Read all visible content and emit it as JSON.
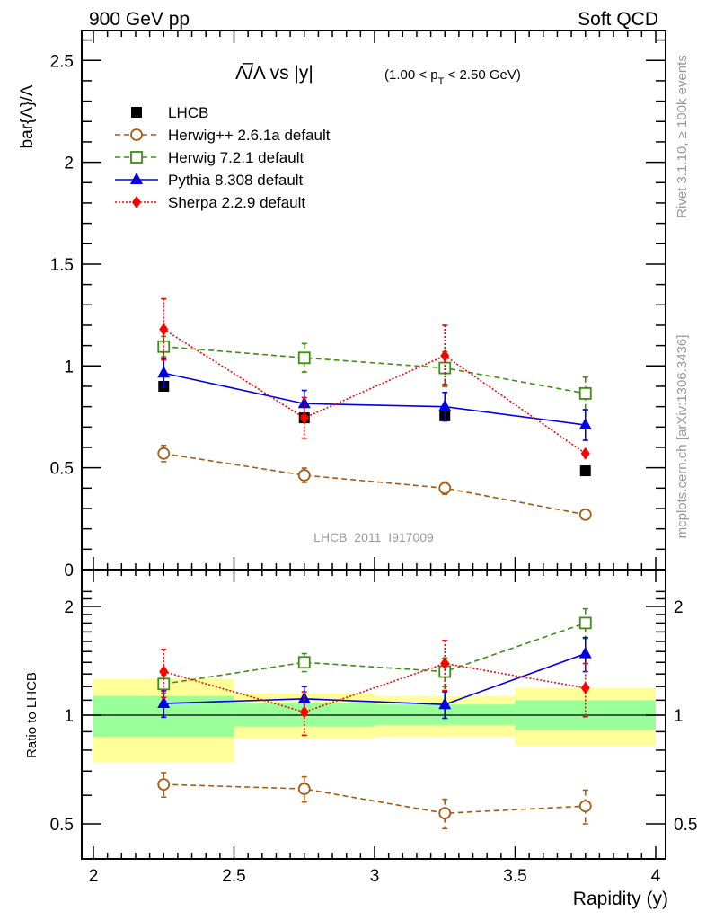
{
  "header": {
    "left": "900 GeV pp",
    "right": "Soft QCD"
  },
  "side_text": {
    "rivet": "Rivet 3.1.10, ≥ 100k events",
    "mcplots": "mcplots.cern.ch [arXiv:1306.3436]"
  },
  "chart_data": [
    {
      "type": "line",
      "panel": "main",
      "title_main": "Λ̅/Λ vs |y|",
      "title_sub": "(1.00 < p_T < 2.50 GeV)",
      "title_sub_parts": [
        "(1.00 < p",
        "T",
        " < 2.50 GeV)"
      ],
      "ylabel": "bar{Λ}/Λ",
      "xlabel": "",
      "analysis_tag": "LHCB_2011_I917009",
      "xlim": [
        1.96,
        4.04
      ],
      "ylim": [
        0,
        2.65
      ],
      "yticks": [
        0,
        0.5,
        1,
        1.5,
        2,
        2.5
      ],
      "ytick_labels": [
        "0",
        "0.5",
        "1",
        "1.5",
        "2",
        "2.5"
      ],
      "x": [
        2.25,
        2.75,
        3.25,
        3.75
      ],
      "legend_position": "top-left",
      "series": [
        {
          "name": "LHCB",
          "style": "data",
          "color": "#000000",
          "marker": "square-filled",
          "values": [
            0.9,
            0.745,
            0.755,
            0.485
          ],
          "errors": [
            0.0,
            0.0,
            0.0,
            0.0
          ]
        },
        {
          "name": "Herwig++ 2.6.1a default",
          "style": "dashed",
          "color": "#a85a10",
          "marker": "circle-open",
          "values": [
            0.57,
            0.463,
            0.4,
            0.27
          ],
          "errors": [
            0.04,
            0.035,
            0.03,
            0.02
          ]
        },
        {
          "name": "Herwig 7.2.1 default",
          "style": "dashed",
          "color": "#3e8e12",
          "marker": "square-open",
          "values": [
            1.095,
            1.04,
            0.99,
            0.865
          ],
          "errors": [
            0.05,
            0.07,
            0.08,
            0.08
          ]
        },
        {
          "name": "Pythia 8.308 default",
          "style": "solid",
          "color": "#0000e0",
          "marker": "triangle-filled",
          "values": [
            0.965,
            0.815,
            0.8,
            0.71
          ],
          "errors": [
            0.07,
            0.065,
            0.07,
            0.075
          ]
        },
        {
          "name": "Sherpa 2.2.9 default",
          "style": "dotted",
          "color": "#ff0000",
          "marker": "diamond-filled",
          "values": [
            1.18,
            0.745,
            1.05,
            0.57
          ],
          "errors": [
            0.15,
            0.1,
            0.15,
            0.0
          ]
        }
      ]
    },
    {
      "type": "line",
      "panel": "ratio",
      "ylabel": "Ratio to LHCB",
      "xlabel": "Rapidity (y)",
      "xlim": [
        1.96,
        4.04
      ],
      "ylim": [
        0.45,
        2.25
      ],
      "yscale": "log",
      "yticks": [
        0.5,
        1,
        2
      ],
      "ytick_labels": [
        "0.5",
        "1",
        "2"
      ],
      "xticks": [
        2,
        2.5,
        3,
        3.5,
        4
      ],
      "xtick_labels": [
        "2",
        "2.5",
        "3",
        "3.5",
        "4"
      ],
      "x": [
        2.25,
        2.75,
        3.25,
        3.75
      ],
      "bands": {
        "bin_edges": [
          2.0,
          2.5,
          3.0,
          3.5,
          4.0
        ],
        "yellow": {
          "color": "#ffff99",
          "lo": [
            0.74,
            0.86,
            0.87,
            0.82
          ],
          "hi": [
            1.26,
            1.15,
            1.13,
            1.19
          ]
        },
        "green": {
          "color": "#99ff99",
          "lo": [
            0.87,
            0.93,
            0.94,
            0.91
          ],
          "hi": [
            1.13,
            1.08,
            1.07,
            1.1
          ]
        }
      },
      "series": [
        {
          "name": "Herwig++ 2.6.1a default",
          "color": "#a85a10",
          "style": "dashed",
          "marker": "circle-open",
          "values": [
            0.643,
            0.625,
            0.535,
            0.56
          ],
          "err_hi": [
            0.05,
            0.05,
            0.05,
            0.06
          ],
          "err_lo": [
            0.05,
            0.05,
            0.05,
            0.06
          ]
        },
        {
          "name": "Herwig 7.2.1 default",
          "color": "#3e8e12",
          "style": "dashed",
          "marker": "square-open",
          "values": [
            1.22,
            1.4,
            1.32,
            1.8
          ],
          "err_hi": [
            0.07,
            0.08,
            0.12,
            0.17
          ],
          "err_lo": [
            0.07,
            0.08,
            0.12,
            0.17
          ]
        },
        {
          "name": "Pythia 8.308 default",
          "color": "#0000e0",
          "style": "solid",
          "marker": "triangle-filled",
          "values": [
            1.077,
            1.11,
            1.07,
            1.48
          ],
          "err_hi": [
            0.09,
            0.09,
            0.09,
            0.16
          ],
          "err_lo": [
            0.09,
            0.09,
            0.09,
            0.16
          ]
        },
        {
          "name": "Sherpa 2.2.9 default",
          "color": "#ff0000",
          "style": "dotted",
          "marker": "diamond-filled",
          "values": [
            1.32,
            1.02,
            1.39,
            1.19
          ],
          "err_hi": [
            0.2,
            0.14,
            0.22,
            0.2
          ],
          "err_lo": [
            0.2,
            0.14,
            0.22,
            0.2
          ]
        }
      ]
    }
  ]
}
